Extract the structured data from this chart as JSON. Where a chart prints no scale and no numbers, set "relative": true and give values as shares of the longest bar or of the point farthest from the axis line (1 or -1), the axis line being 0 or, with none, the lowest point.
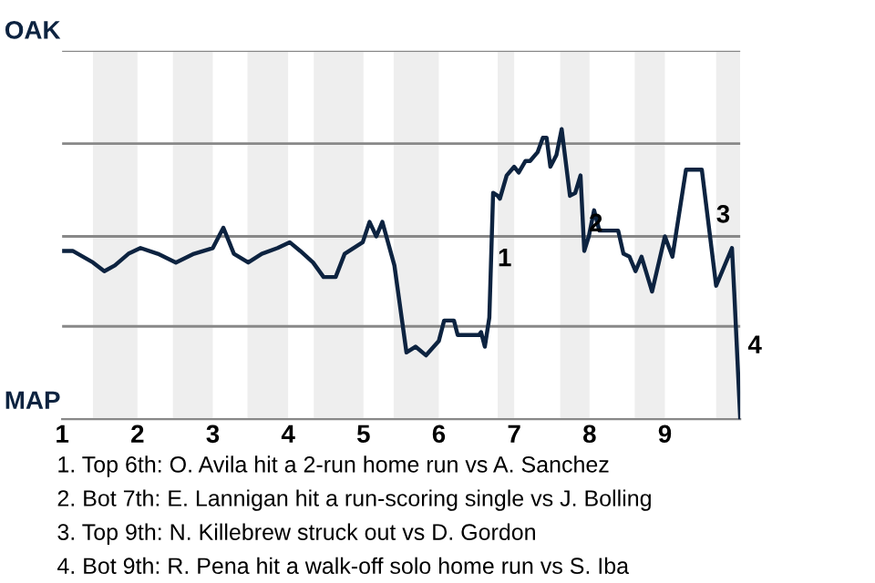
{
  "chart_data": {
    "type": "line",
    "relative": true,
    "x": [
      1.0,
      1.14,
      1.41,
      1.56,
      1.7,
      1.88,
      2.04,
      2.27,
      2.51,
      2.75,
      3.0,
      3.14,
      3.28,
      3.47,
      3.65,
      3.86,
      4.02,
      4.16,
      4.33,
      4.47,
      4.63,
      4.75,
      4.99,
      5.08,
      5.17,
      5.25,
      5.41,
      5.57,
      5.69,
      5.83,
      6.0,
      6.07,
      6.2,
      6.25,
      6.53,
      6.56,
      6.61,
      6.67,
      6.72,
      6.78,
      6.81,
      6.9,
      7.0,
      7.06,
      7.15,
      7.21,
      7.31,
      7.38,
      7.43,
      7.48,
      7.56,
      7.63,
      7.74,
      7.81,
      7.88,
      7.93,
      7.99,
      8.06,
      8.13,
      8.38,
      8.45,
      8.53,
      8.61,
      8.69,
      8.83,
      9.0,
      9.1,
      9.28,
      9.49,
      9.68,
      9.89,
      9.92,
      10.0
    ],
    "series": [
      {
        "color": "#0d2340",
        "values": [
          0.58,
          0.58,
          0.54,
          0.51,
          0.53,
          0.57,
          0.59,
          0.57,
          0.54,
          0.57,
          0.59,
          0.66,
          0.57,
          0.54,
          0.57,
          0.59,
          0.61,
          0.58,
          0.54,
          0.49,
          0.49,
          0.57,
          0.61,
          0.68,
          0.63,
          0.68,
          0.53,
          0.23,
          0.25,
          0.22,
          0.27,
          0.34,
          0.34,
          0.29,
          0.29,
          0.3,
          0.25,
          0.35,
          0.78,
          0.77,
          0.76,
          0.84,
          0.87,
          0.85,
          0.89,
          0.89,
          0.92,
          0.97,
          0.97,
          0.87,
          0.91,
          1,
          0.77,
          0.78,
          0.84,
          0.58,
          0.63,
          0.72,
          0.65,
          0.65,
          0.57,
          0.56,
          0.51,
          0.56,
          0.44,
          0.63,
          0.56,
          0.86,
          0.86,
          0.46,
          0.59,
          0.44,
          0
        ]
      }
    ],
    "xlim": [
      1,
      10
    ],
    "xticks": [
      1,
      2,
      3,
      4,
      5,
      6,
      7,
      8,
      9
    ],
    "ref_lines": [
      {
        "axis": "y",
        "value": 0.32,
        "color": "#888888"
      },
      {
        "axis": "y",
        "value": 0.63,
        "color": "#888888"
      },
      {
        "axis": "y",
        "value": 0.95,
        "color": "#888888"
      },
      {
        "axis": "y",
        "value": 1.27,
        "color": "#888888"
      }
    ],
    "line_style": "solid",
    "bands": [
      {
        "axis": "x",
        "from": 1.41,
        "to": 2,
        "color": "#eeeeee"
      },
      {
        "axis": "x",
        "from": 2.47,
        "to": 3,
        "color": "#eeeeee"
      },
      {
        "axis": "x",
        "from": 3.46,
        "to": 4,
        "color": "#eeeeee"
      },
      {
        "axis": "x",
        "from": 4.34,
        "to": 5,
        "color": "#eeeeee"
      },
      {
        "axis": "x",
        "from": 5.4,
        "to": 6,
        "color": "#eeeeee"
      },
      {
        "axis": "x",
        "from": 6.78,
        "to": 7,
        "color": "#eeeeee"
      },
      {
        "axis": "x",
        "from": 7.61,
        "to": 8,
        "color": "#eeeeee"
      },
      {
        "axis": "x",
        "from": 8.6,
        "to": 9,
        "color": "#eeeeee"
      },
      {
        "axis": "x",
        "from": 9.68,
        "to": 10,
        "color": "#eeeeee"
      }
    ],
    "annotations": [
      "OAK",
      "MAP",
      {
        "text": "1",
        "x": 6.78,
        "y": 0.55
      },
      {
        "text": "2",
        "x": 7.99,
        "y": 0.67
      },
      {
        "text": "3",
        "x": 9.68,
        "y": 0.7
      },
      {
        "text": "4",
        "x": 10.1,
        "y": 0.25
      },
      "1. Top 6th: O. Avila hit a 2-run home run vs A. Sanchez",
      "2. Bot 7th: E. Lannigan hit a run-scoring single vs J. Bolling",
      "3. Top 9th: N. Killebrew struck out vs D. Gordon",
      "4. Bot 9th: R. Pena hit a walk-off solo home run vs S. Iba"
    ]
  }
}
